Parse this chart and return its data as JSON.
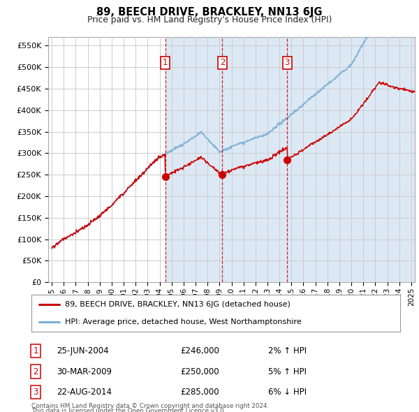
{
  "title": "89, BEECH DRIVE, BRACKLEY, NN13 6JG",
  "subtitle": "Price paid vs. HM Land Registry's House Price Index (HPI)",
  "ylabel_ticks": [
    "£0",
    "£50K",
    "£100K",
    "£150K",
    "£200K",
    "£250K",
    "£300K",
    "£350K",
    "£400K",
    "£450K",
    "£500K",
    "£550K"
  ],
  "ytick_values": [
    0,
    50000,
    100000,
    150000,
    200000,
    250000,
    300000,
    350000,
    400000,
    450000,
    500000,
    550000
  ],
  "ylim": [
    0,
    570000
  ],
  "transactions": [
    {
      "date_num": 2004.48,
      "price": 246000,
      "label": "1"
    },
    {
      "date_num": 2009.24,
      "price": 250000,
      "label": "2"
    },
    {
      "date_num": 2014.65,
      "price": 285000,
      "label": "3"
    }
  ],
  "vline_dates": [
    2004.48,
    2009.24,
    2014.65
  ],
  "legend_red": "89, BEECH DRIVE, BRACKLEY, NN13 6JG (detached house)",
  "legend_blue": "HPI: Average price, detached house, West Northamptonshire",
  "table_rows": [
    {
      "num": "1",
      "date": "25-JUN-2004",
      "price": "£246,000",
      "pct": "2% ↑ HPI"
    },
    {
      "num": "2",
      "date": "30-MAR-2009",
      "price": "£250,000",
      "pct": "5% ↑ HPI"
    },
    {
      "num": "3",
      "date": "22-AUG-2014",
      "price": "£285,000",
      "pct": "6% ↓ HPI"
    }
  ],
  "footnote1": "Contains HM Land Registry data © Crown copyright and database right 2024.",
  "footnote2": "This data is licensed under the Open Government Licence v3.0.",
  "red_color": "#cc0000",
  "blue_color": "#7bafd4",
  "shade_color": "#dce9f5",
  "grid_color": "#cccccc",
  "vline_color": "#cc0000",
  "bg_color": "#ffffff",
  "plot_bg": "#ffffff",
  "xlim_left": 1994.7,
  "xlim_right": 2025.3
}
